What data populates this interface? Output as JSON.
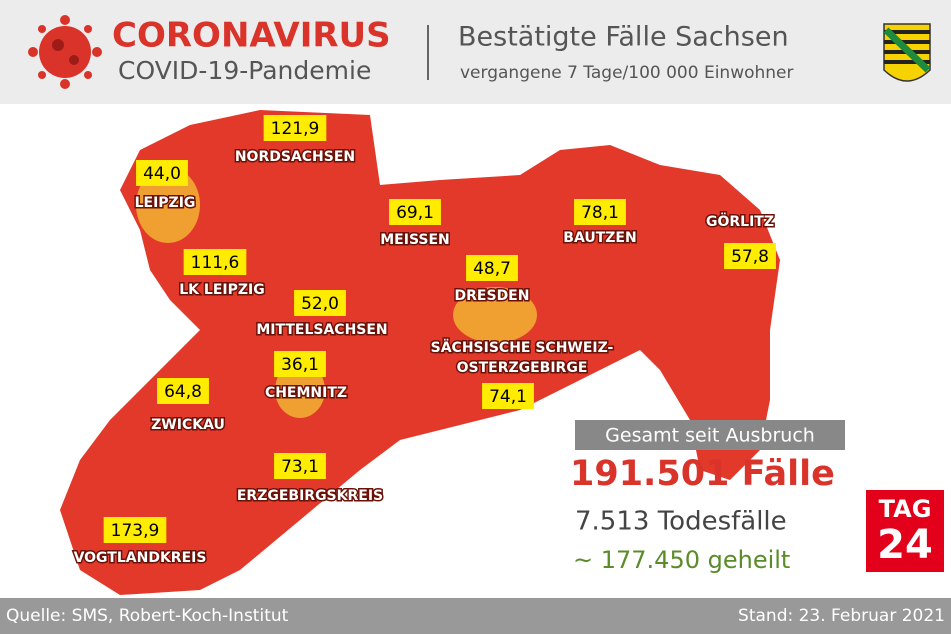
{
  "header": {
    "title": "CORONAVIRUS",
    "subtitle": "COVID-19-Pandemie",
    "heading": "Bestätigte Fälle Sachsen",
    "subheading": "vergangene 7 Tage/100 000 Einwohner"
  },
  "regions": [
    {
      "name": "NORDSACHSEN",
      "value": "121,9"
    },
    {
      "name": "LEIPZIG",
      "value": "44,0"
    },
    {
      "name": "MEISSEN",
      "value": "69,1"
    },
    {
      "name": "BAUTZEN",
      "value": "78,1"
    },
    {
      "name": "GÖRLITZ",
      "value": "57,8"
    },
    {
      "name": "LK LEIPZIG",
      "value": "111,6"
    },
    {
      "name": "DRESDEN",
      "value": "48,7"
    },
    {
      "name": "MITTELSACHSEN",
      "value": "52,0"
    },
    {
      "name": "SÄCHSISCHE SCHWEIZ-",
      "name2": "OSTERZGEBIRGE",
      "value": "74,1"
    },
    {
      "name": "CHEMNITZ",
      "value": "36,1"
    },
    {
      "name": "ZWICKAU",
      "value": "64,8"
    },
    {
      "name": "ERZGEBIRGSKREIS",
      "value": "73,1"
    },
    {
      "name": "VOGTLANDKREIS",
      "value": "173,9"
    }
  ],
  "summary": {
    "heading": "Gesamt seit Ausbruch",
    "cases": "191.501 Fälle",
    "deaths": "7.513 Todesfälle",
    "recovered": "~ 177.450 geheilt"
  },
  "logo": {
    "top": "TAG",
    "bottom": "24"
  },
  "footer": {
    "source": "Quelle: SMS, Robert-Koch-Institut",
    "date": "Stand: 23. Februar 2021"
  }
}
